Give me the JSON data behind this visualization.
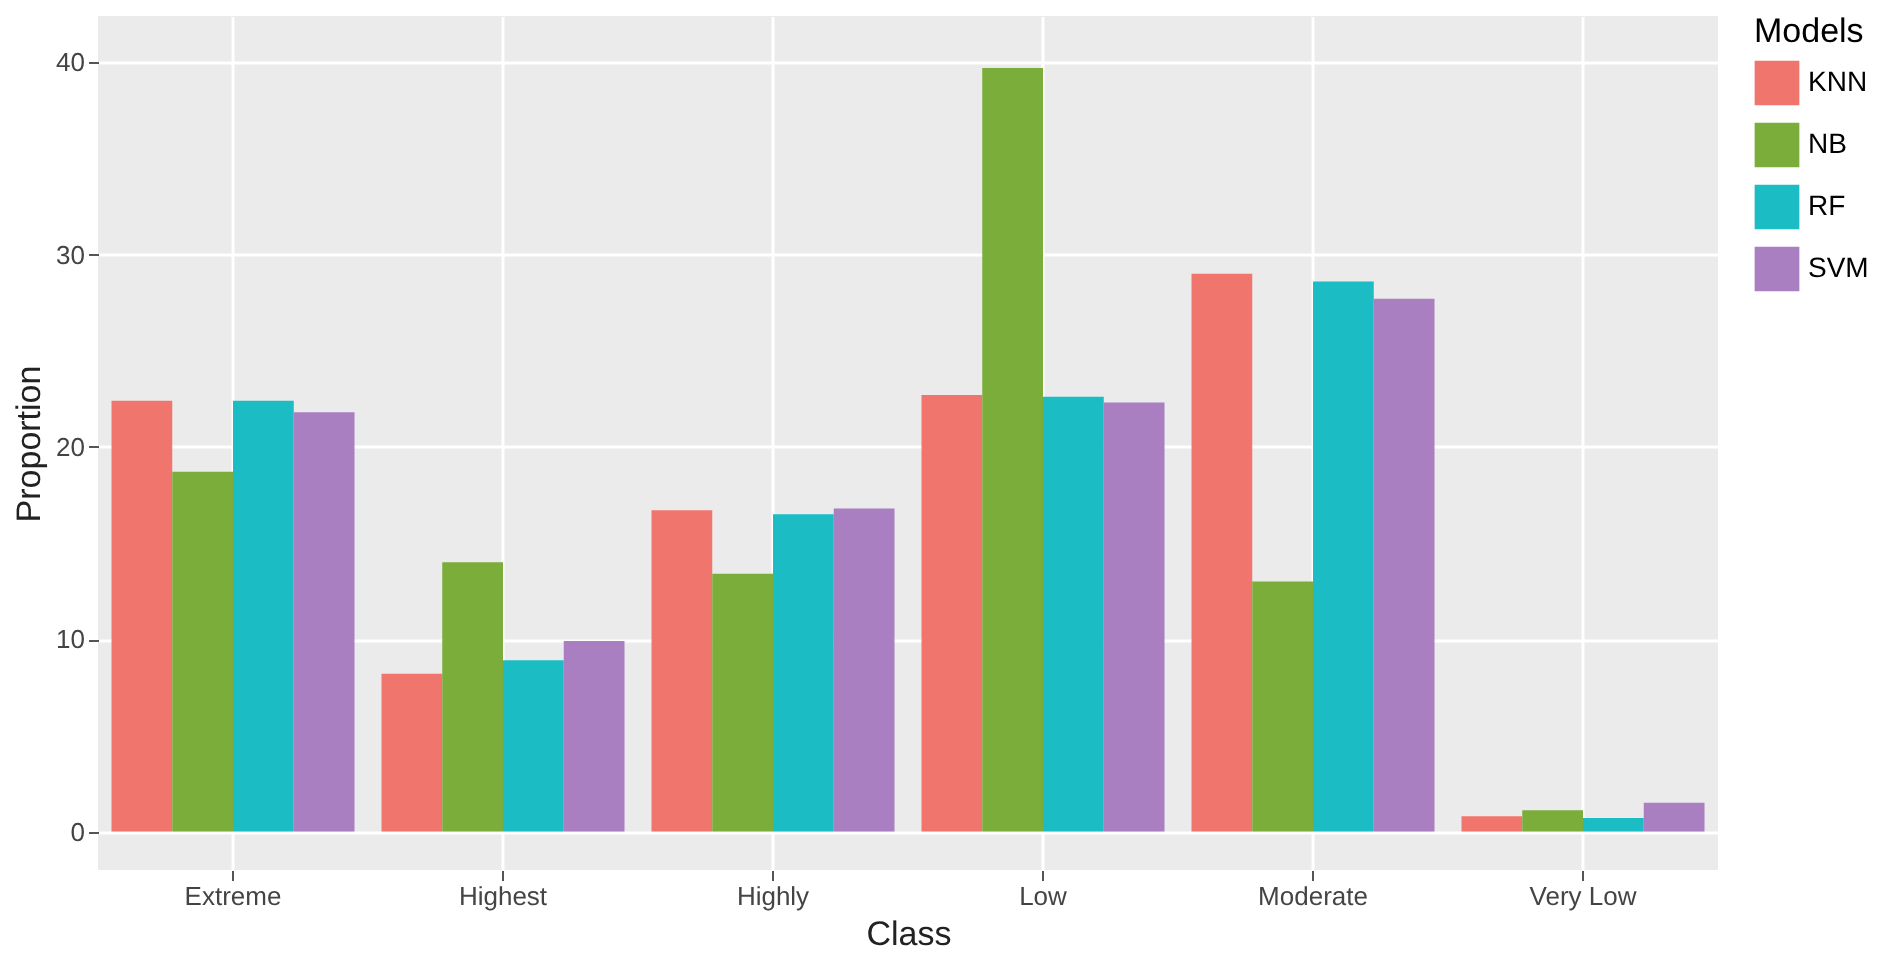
{
  "chart_data": {
    "type": "bar",
    "xlabel": "Class",
    "ylabel": "Proportion",
    "legend_title": "Models",
    "categories": [
      "Extreme",
      "Highest",
      "Highly",
      "Low",
      "Moderate",
      "Very Low"
    ],
    "series": [
      {
        "name": "KNN",
        "color": "#f0766d",
        "values": [
          22.4,
          8.2,
          16.7,
          22.7,
          29.0,
          0.8
        ]
      },
      {
        "name": "NB",
        "color": "#7aad3a",
        "values": [
          18.7,
          14.0,
          13.4,
          39.7,
          13.0,
          1.1
        ]
      },
      {
        "name": "RF",
        "color": "#1bbcc4",
        "values": [
          22.4,
          8.9,
          16.5,
          22.6,
          28.6,
          0.7
        ]
      },
      {
        "name": "SVM",
        "color": "#a97fc2",
        "values": [
          21.8,
          9.9,
          16.8,
          22.3,
          27.7,
          1.5
        ]
      }
    ],
    "ylim": [
      -2,
      42.4
    ],
    "yticks": [
      0,
      10,
      20,
      30,
      40
    ],
    "grid": true,
    "legend": "right"
  }
}
